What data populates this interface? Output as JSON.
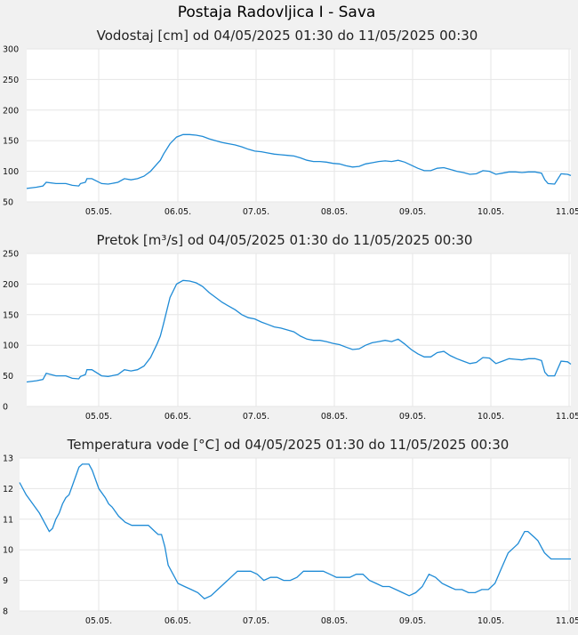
{
  "page": {
    "title": "Postaja Radovljica I - Sava"
  },
  "colors": {
    "series": "#1f8bd6",
    "background": "#f1f1f1",
    "plot_background": "#ffffff",
    "grid": "#e6e6e6"
  },
  "chart_data": [
    {
      "type": "line",
      "title": "Vodostaj [cm] od 04/05/2025 01:30 do 11/05/2025 00:30",
      "xlabel": "",
      "ylabel": "",
      "x_ticks": [
        "05.05.",
        "06.05.",
        "07.05.",
        "08.05.",
        "09.05.",
        "10.05.",
        "11.05."
      ],
      "xlim": [
        0,
        167
      ],
      "ylim": [
        50,
        300
      ],
      "y_ticks": [
        50,
        100,
        150,
        200,
        250,
        300
      ],
      "grid": true,
      "series": [
        {
          "x": [
            0,
            3,
            5,
            6,
            9,
            12,
            14,
            16,
            16.5,
            18,
            18.5,
            20,
            23,
            25,
            26,
            28,
            30,
            32,
            34,
            36,
            38,
            40,
            41,
            42,
            44,
            46,
            48,
            50,
            52,
            54,
            56,
            58,
            60,
            62,
            64,
            66,
            68,
            70,
            72,
            74,
            76,
            78,
            80,
            82,
            84,
            86,
            88,
            90,
            92,
            94,
            96,
            98,
            100,
            102,
            104,
            106,
            108,
            110,
            112,
            114,
            116,
            118,
            120,
            122,
            124,
            126,
            128,
            130,
            132,
            134,
            136,
            138,
            140,
            142,
            144,
            146,
            148,
            150,
            152,
            154,
            156,
            158,
            159,
            160,
            162,
            164,
            166,
            167
          ],
          "y": [
            72,
            74,
            76,
            82,
            80,
            80,
            77,
            76,
            80,
            82,
            88,
            88,
            80,
            79,
            80,
            82,
            88,
            86,
            88,
            92,
            100,
            112,
            118,
            128,
            145,
            156,
            160,
            160,
            159,
            157,
            153,
            150,
            147,
            145,
            143,
            140,
            136,
            133,
            132,
            130,
            128,
            127,
            126,
            125,
            122,
            118,
            116,
            116,
            115,
            113,
            112,
            109,
            107,
            108,
            112,
            114,
            116,
            117,
            116,
            118,
            115,
            110,
            105,
            101,
            101,
            105,
            106,
            103,
            100,
            98,
            95,
            96,
            101,
            100,
            95,
            97,
            99,
            99,
            98,
            99,
            99,
            97,
            86,
            80,
            79,
            96,
            95,
            93
          ]
        }
      ]
    },
    {
      "type": "line",
      "title": "Pretok [m³/s] od 04/05/2025 01:30 do 11/05/2025 00:30",
      "xlabel": "",
      "ylabel": "",
      "x_ticks": [
        "05.05.",
        "06.05.",
        "07.05.",
        "08.05.",
        "09.05.",
        "10.05.",
        "11.05."
      ],
      "xlim": [
        0,
        167
      ],
      "ylim": [
        0,
        250
      ],
      "y_ticks": [
        0,
        50,
        100,
        150,
        200,
        250
      ],
      "grid": true,
      "series": [
        {
          "x": [
            0,
            3,
            5,
            6,
            9,
            12,
            14,
            16,
            16.5,
            18,
            18.5,
            20,
            23,
            25,
            26,
            28,
            30,
            32,
            34,
            36,
            38,
            40,
            41,
            42,
            44,
            46,
            48,
            50,
            52,
            54,
            56,
            58,
            60,
            62,
            64,
            66,
            68,
            70,
            72,
            74,
            76,
            78,
            80,
            82,
            84,
            86,
            88,
            90,
            92,
            94,
            96,
            98,
            100,
            102,
            104,
            106,
            108,
            110,
            112,
            114,
            116,
            118,
            120,
            122,
            124,
            126,
            128,
            130,
            132,
            134,
            136,
            138,
            140,
            142,
            144,
            146,
            148,
            150,
            152,
            154,
            156,
            158,
            159,
            160,
            162,
            164,
            166,
            167
          ],
          "y": [
            40,
            42,
            44,
            54,
            50,
            50,
            46,
            45,
            49,
            52,
            60,
            60,
            50,
            49,
            50,
            52,
            60,
            58,
            60,
            66,
            80,
            102,
            115,
            135,
            178,
            200,
            206,
            205,
            202,
            196,
            186,
            178,
            170,
            164,
            158,
            150,
            145,
            143,
            138,
            134,
            130,
            128,
            125,
            122,
            115,
            110,
            108,
            108,
            106,
            103,
            101,
            97,
            93,
            94,
            100,
            104,
            106,
            108,
            106,
            110,
            102,
            93,
            86,
            81,
            81,
            88,
            90,
            83,
            78,
            74,
            70,
            72,
            80,
            79,
            70,
            74,
            78,
            77,
            76,
            78,
            78,
            75,
            56,
            50,
            50,
            74,
            73,
            69
          ]
        }
      ]
    },
    {
      "type": "line",
      "title": "Temperatura vode [°C] od 04/05/2025 01:30 do 11/05/2025 00:30",
      "xlabel": "",
      "ylabel": "",
      "x_ticks": [
        "05.05.",
        "06.05.",
        "07.05.",
        "08.05.",
        "09.05.",
        "10.05.",
        "11.05."
      ],
      "xlim": [
        0,
        167
      ],
      "ylim": [
        8,
        13
      ],
      "y_ticks": [
        8,
        9,
        10,
        11,
        12,
        13
      ],
      "grid": true,
      "series": [
        {
          "x": [
            0,
            2,
            4,
            6,
            8,
            9,
            10,
            11,
            12,
            13,
            14,
            15,
            16,
            17,
            18,
            19,
            20,
            21,
            22,
            24,
            26,
            27,
            28,
            30,
            32,
            34,
            36,
            37,
            38,
            39,
            40,
            41,
            42,
            43,
            44,
            45,
            46,
            48,
            50,
            52,
            54,
            56,
            58,
            60,
            62,
            64,
            66,
            68,
            70,
            72,
            74,
            76,
            78,
            80,
            82,
            84,
            86,
            88,
            90,
            92,
            94,
            96,
            98,
            100,
            102,
            104,
            106,
            108,
            110,
            112,
            114,
            116,
            118,
            120,
            122,
            124,
            126,
            128,
            130,
            132,
            134,
            136,
            138,
            140,
            142,
            144,
            146,
            148,
            150,
            151,
            152,
            153,
            154,
            155,
            156,
            157,
            158,
            159,
            160,
            161,
            162,
            164,
            166,
            167
          ],
          "y": [
            12.2,
            11.8,
            11.5,
            11.2,
            10.8,
            10.6,
            10.7,
            11.0,
            11.2,
            11.5,
            11.7,
            11.8,
            12.1,
            12.4,
            12.7,
            12.8,
            12.8,
            12.8,
            12.6,
            12.0,
            11.7,
            11.5,
            11.4,
            11.1,
            10.9,
            10.8,
            10.8,
            10.8,
            10.8,
            10.8,
            10.7,
            10.6,
            10.5,
            10.5,
            10.1,
            9.5,
            9.3,
            8.9,
            8.8,
            8.7,
            8.6,
            8.4,
            8.5,
            8.7,
            8.9,
            9.1,
            9.3,
            9.3,
            9.3,
            9.2,
            9.0,
            9.1,
            9.1,
            9.0,
            9.0,
            9.1,
            9.3,
            9.3,
            9.3,
            9.3,
            9.2,
            9.1,
            9.1,
            9.1,
            9.2,
            9.2,
            9.0,
            8.9,
            8.8,
            8.8,
            8.7,
            8.6,
            8.5,
            8.6,
            8.8,
            9.2,
            9.1,
            8.9,
            8.8,
            8.7,
            8.7,
            8.6,
            8.6,
            8.7,
            8.7,
            8.9,
            9.4,
            9.9,
            10.1,
            10.2,
            10.4,
            10.6,
            10.6,
            10.5,
            10.4,
            10.3,
            10.1,
            9.9,
            9.8,
            9.7,
            9.7,
            9.7,
            9.7,
            9.7
          ]
        }
      ]
    }
  ]
}
